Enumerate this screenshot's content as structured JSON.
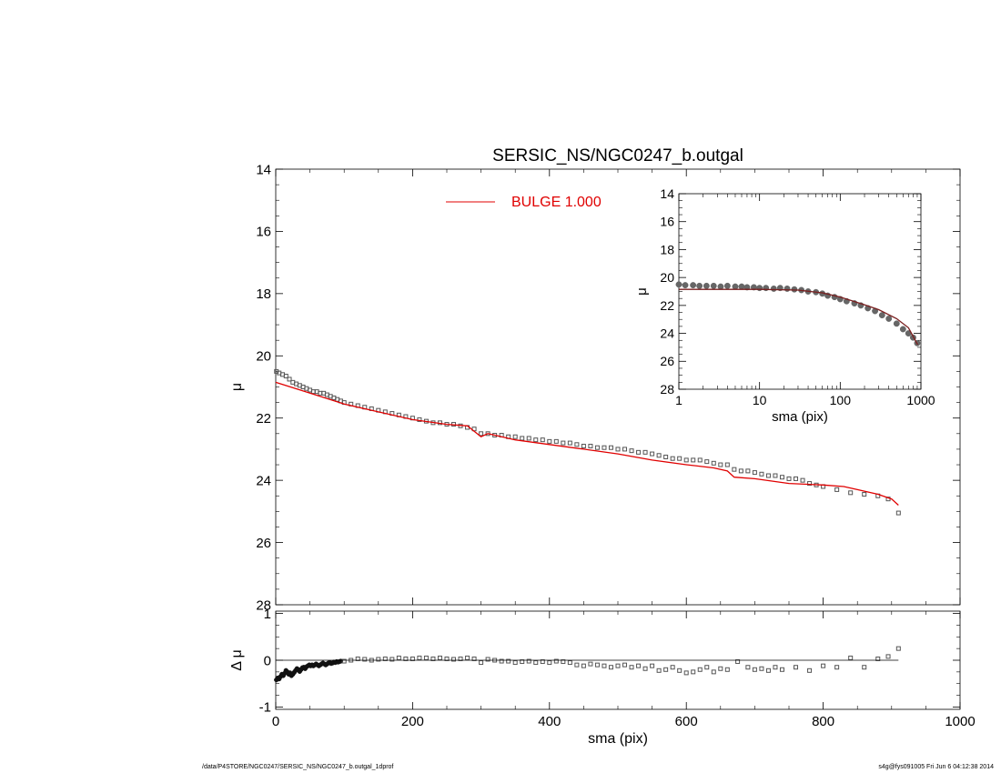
{
  "title": "SERSIC_NS/NGC0247_b.outgal",
  "footer": {
    "left": "/data/P4STORE/NGC0247/SERSIC_NS/NGC0247_b.outgal_1dprof",
    "right": "s4g@fys091005  Fri Jun  6 04:12:38 2014"
  },
  "colors": {
    "model": "#e00000",
    "data": "#555555",
    "axis": "#000000"
  },
  "chart_data": [
    {
      "id": "main",
      "type": "scatter",
      "title": "SERSIC_NS/NGC0247_b.outgal",
      "xlabel": "",
      "ylabel": "μ",
      "xlim": [
        0,
        1000
      ],
      "ylim": [
        28,
        14
      ],
      "xticks": [
        0,
        200,
        400,
        600,
        800,
        1000
      ],
      "xtick_labels": [
        "",
        "",
        "",
        "",
        "",
        ""
      ],
      "yticks": [
        14,
        16,
        18,
        20,
        22,
        24,
        26,
        28
      ],
      "ytick_labels": [
        "14",
        "16",
        "18",
        "20",
        "22",
        "24",
        "26",
        "28"
      ],
      "legend": {
        "label": "BULGE  1.000",
        "placement": "top-center"
      },
      "series": [
        {
          "kind": "points",
          "x": [
            1,
            5,
            10,
            15,
            20,
            25,
            30,
            35,
            40,
            45,
            50,
            55,
            60,
            65,
            70,
            75,
            80,
            85,
            90,
            95,
            100,
            110,
            120,
            130,
            140,
            150,
            160,
            170,
            180,
            190,
            200,
            210,
            220,
            230,
            240,
            250,
            260,
            270,
            280,
            290,
            300,
            310,
            320,
            330,
            340,
            350,
            360,
            370,
            380,
            390,
            400,
            410,
            420,
            430,
            440,
            450,
            460,
            470,
            480,
            490,
            500,
            510,
            520,
            530,
            540,
            550,
            560,
            570,
            580,
            590,
            600,
            610,
            620,
            630,
            640,
            650,
            660,
            670,
            680,
            690,
            700,
            710,
            720,
            730,
            740,
            750,
            760,
            770,
            780,
            790,
            800,
            820,
            840,
            860,
            880,
            895,
            910
          ],
          "y": [
            20.5,
            20.55,
            20.6,
            20.65,
            20.75,
            20.85,
            20.9,
            20.95,
            21.0,
            21.05,
            21.1,
            21.15,
            21.15,
            21.2,
            21.2,
            21.25,
            21.3,
            21.35,
            21.4,
            21.45,
            21.5,
            21.55,
            21.6,
            21.65,
            21.7,
            21.75,
            21.8,
            21.85,
            21.9,
            21.95,
            22.0,
            22.05,
            22.1,
            22.15,
            22.15,
            22.2,
            22.2,
            22.25,
            22.3,
            22.35,
            22.5,
            22.5,
            22.55,
            22.55,
            22.6,
            22.6,
            22.65,
            22.65,
            22.7,
            22.7,
            22.75,
            22.75,
            22.8,
            22.8,
            22.85,
            22.9,
            22.9,
            22.95,
            22.95,
            22.95,
            23.0,
            23.0,
            23.05,
            23.1,
            23.1,
            23.15,
            23.2,
            23.25,
            23.3,
            23.3,
            23.35,
            23.35,
            23.35,
            23.4,
            23.45,
            23.5,
            23.5,
            23.65,
            23.7,
            23.7,
            23.75,
            23.8,
            23.85,
            23.85,
            23.9,
            23.95,
            23.95,
            24.0,
            24.1,
            24.15,
            24.2,
            24.3,
            24.4,
            24.45,
            24.5,
            24.6,
            25.05
          ]
        },
        {
          "kind": "line",
          "name": "BULGE  1.000",
          "x": [
            0,
            50,
            100,
            150,
            200,
            250,
            280,
            300,
            310,
            320,
            350,
            400,
            450,
            500,
            550,
            600,
            640,
            660,
            670,
            700,
            750,
            800,
            830,
            850,
            880,
            900,
            910
          ],
          "y": [
            20.85,
            21.2,
            21.55,
            21.8,
            22.05,
            22.2,
            22.25,
            22.6,
            22.5,
            22.55,
            22.7,
            22.85,
            23.0,
            23.15,
            23.35,
            23.5,
            23.6,
            23.7,
            23.9,
            23.95,
            24.1,
            24.15,
            24.2,
            24.3,
            24.45,
            24.6,
            24.8
          ]
        }
      ]
    },
    {
      "id": "residual",
      "type": "scatter",
      "xlabel": "sma (pix)",
      "ylabel": "Δ μ",
      "xlim": [
        0,
        1000
      ],
      "ylim": [
        -1.05,
        1.05
      ],
      "xticks": [
        0,
        200,
        400,
        600,
        800,
        1000
      ],
      "xtick_labels": [
        "0",
        "200",
        "400",
        "600",
        "800",
        "1000"
      ],
      "yticks": [
        -1,
        0,
        1
      ],
      "ytick_labels": [
        "-1",
        "0",
        "1"
      ],
      "series": [
        {
          "kind": "dense",
          "x": [
            1,
            3,
            5,
            7,
            9,
            11,
            13,
            15,
            17,
            19,
            21,
            23,
            25,
            27,
            29,
            31,
            33,
            35,
            37,
            39,
            41,
            43,
            45,
            47,
            49,
            51,
            53,
            55,
            57,
            59,
            61,
            63,
            65,
            67,
            69,
            71,
            73,
            75,
            77,
            79,
            81,
            83,
            85,
            87,
            89,
            91,
            93,
            95
          ],
          "y": [
            -0.42,
            -0.38,
            -0.4,
            -0.35,
            -0.3,
            -0.33,
            -0.28,
            -0.22,
            -0.25,
            -0.3,
            -0.27,
            -0.33,
            -0.3,
            -0.26,
            -0.22,
            -0.18,
            -0.2,
            -0.24,
            -0.2,
            -0.16,
            -0.15,
            -0.18,
            -0.14,
            -0.12,
            -0.1,
            -0.12,
            -0.1,
            -0.12,
            -0.1,
            -0.08,
            -0.1,
            -0.12,
            -0.1,
            -0.08,
            -0.06,
            -0.08,
            -0.1,
            -0.08,
            -0.06,
            -0.05,
            -0.07,
            -0.06,
            -0.04,
            -0.05,
            -0.03,
            -0.04,
            -0.03,
            -0.02
          ]
        },
        {
          "kind": "points",
          "x": [
            100,
            110,
            120,
            130,
            140,
            150,
            160,
            170,
            180,
            190,
            200,
            210,
            220,
            230,
            240,
            250,
            260,
            270,
            280,
            290,
            300,
            310,
            320,
            330,
            340,
            350,
            360,
            370,
            380,
            390,
            400,
            410,
            420,
            430,
            440,
            450,
            460,
            470,
            480,
            490,
            500,
            510,
            520,
            530,
            540,
            550,
            560,
            570,
            580,
            590,
            600,
            610,
            620,
            630,
            640,
            650,
            660,
            675,
            690,
            700,
            710,
            720,
            730,
            740,
            760,
            780,
            800,
            820,
            840,
            860,
            880,
            895,
            910
          ],
          "y": [
            -0.02,
            0.0,
            0.03,
            0.02,
            0.0,
            0.02,
            0.03,
            0.02,
            0.05,
            0.03,
            0.03,
            0.05,
            0.05,
            0.03,
            0.05,
            0.03,
            0.02,
            0.03,
            0.05,
            0.03,
            -0.05,
            0.02,
            0.0,
            -0.02,
            -0.02,
            -0.05,
            -0.03,
            -0.02,
            -0.05,
            -0.03,
            -0.05,
            -0.02,
            -0.03,
            -0.05,
            -0.1,
            -0.12,
            -0.08,
            -0.1,
            -0.12,
            -0.15,
            -0.12,
            -0.1,
            -0.15,
            -0.12,
            -0.18,
            -0.12,
            -0.22,
            -0.2,
            -0.15,
            -0.22,
            -0.27,
            -0.25,
            -0.2,
            -0.15,
            -0.25,
            -0.18,
            -0.2,
            -0.03,
            -0.15,
            -0.2,
            -0.18,
            -0.22,
            -0.15,
            -0.2,
            -0.15,
            -0.22,
            -0.12,
            -0.15,
            0.05,
            -0.15,
            0.03,
            0.08,
            0.25
          ]
        },
        {
          "kind": "line",
          "x": [
            0,
            910
          ],
          "y": [
            0,
            0
          ]
        }
      ]
    },
    {
      "id": "inset",
      "type": "scatter",
      "xscale": "log",
      "xlabel": "sma (pix)",
      "ylabel": "μ",
      "xlim": [
        1,
        1000
      ],
      "ylim": [
        28,
        14
      ],
      "xticks": [
        1,
        10,
        100,
        1000
      ],
      "xtick_labels": [
        "1",
        "10",
        "100",
        "1000"
      ],
      "yticks": [
        14,
        16,
        18,
        20,
        22,
        24,
        26,
        28
      ],
      "ytick_labels": [
        "14",
        "16",
        "18",
        "20",
        "22",
        "24",
        "26",
        "28"
      ],
      "series": [
        {
          "kind": "dense",
          "x": [
            1,
            1.2,
            1.5,
            1.8,
            2.2,
            2.7,
            3.3,
            4,
            5,
            6,
            7,
            8.5,
            10,
            12,
            15,
            18,
            22,
            27,
            33,
            40,
            50,
            60,
            70,
            85,
            100,
            120,
            150,
            180,
            220,
            270,
            330,
            400,
            500,
            600,
            700,
            800,
            900
          ],
          "y": [
            20.5,
            20.55,
            20.55,
            20.6,
            20.6,
            20.6,
            20.65,
            20.6,
            20.65,
            20.65,
            20.7,
            20.7,
            20.75,
            20.75,
            20.8,
            20.75,
            20.8,
            20.85,
            20.9,
            21.0,
            21.05,
            21.15,
            21.3,
            21.4,
            21.55,
            21.7,
            21.85,
            22.0,
            22.2,
            22.4,
            22.7,
            22.95,
            23.3,
            23.7,
            24.0,
            24.3,
            24.7
          ]
        },
        {
          "kind": "line",
          "x": [
            1,
            3,
            10,
            30,
            60,
            100,
            200,
            300,
            500,
            700,
            910
          ],
          "y": [
            20.85,
            20.85,
            20.85,
            20.9,
            21.1,
            21.4,
            21.95,
            22.3,
            22.95,
            23.6,
            24.8
          ]
        }
      ]
    }
  ]
}
